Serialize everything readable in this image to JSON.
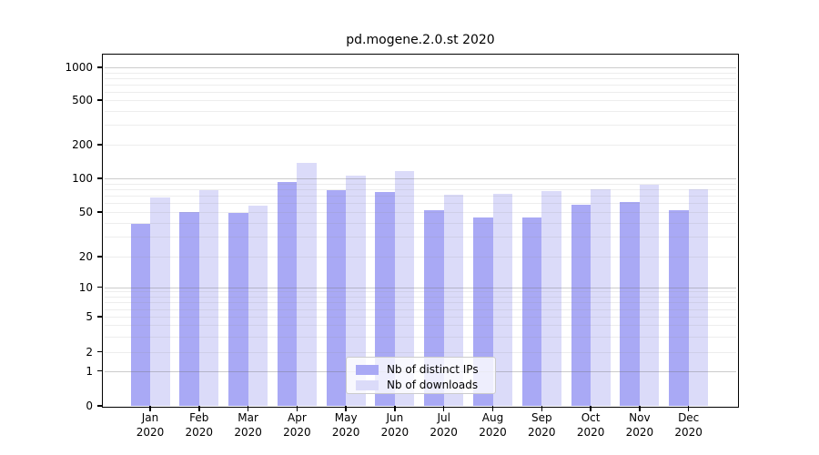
{
  "figure": {
    "title": "pd.mogene.2.0.st 2020"
  },
  "chart_data": {
    "type": "bar",
    "title": "pd.mogene.2.0.st 2020",
    "categories": [
      "Jan",
      "Feb",
      "Mar",
      "Apr",
      "May",
      "Jun",
      "Jul",
      "Aug",
      "Sep",
      "Oct",
      "Nov",
      "Dec"
    ],
    "category_year": "2020",
    "series": [
      {
        "name": "Nb of distinct IPs",
        "color": "#a9a9f5",
        "values": [
          39,
          50,
          49,
          93,
          78,
          76,
          52,
          45,
          45,
          58,
          61,
          52
        ]
      },
      {
        "name": "Nb of downloads",
        "color": "#dbdbf9",
        "values": [
          67,
          78,
          57,
          137,
          105,
          117,
          72,
          73,
          77,
          80,
          88,
          80
        ]
      }
    ],
    "yticks": [
      0,
      1,
      2,
      5,
      10,
      20,
      50,
      100,
      200,
      500,
      1000
    ],
    "yscale": "log-like with zero baseline",
    "ylim": [
      0,
      1800
    ],
    "xlabel": "",
    "ylabel": "",
    "grid": "horizontal major and minor gridlines",
    "legend_position": "inside bottom-center"
  },
  "legend": {
    "items": [
      {
        "label": "Nb of distinct IPs",
        "color": "#a9a9f5"
      },
      {
        "label": "Nb of downloads",
        "color": "#dbdbf9"
      }
    ]
  }
}
